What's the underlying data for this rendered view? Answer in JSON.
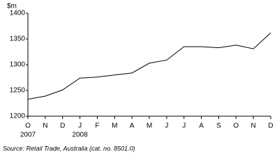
{
  "chart_data": {
    "type": "line",
    "y_label": "$m",
    "categories": [
      "O",
      "N",
      "D",
      "J",
      "F",
      "M",
      "A",
      "M",
      "J",
      "J",
      "A",
      "S",
      "O",
      "N",
      "D"
    ],
    "year_labels": [
      "2007",
      null,
      null,
      "2008",
      null,
      null,
      null,
      null,
      null,
      null,
      null,
      null,
      null,
      null,
      null
    ],
    "values": [
      1233,
      1239,
      1251,
      1274,
      1276,
      1280,
      1284,
      1303,
      1309,
      1335,
      1335,
      1333,
      1338,
      1331,
      1362
    ],
    "color": "#000000",
    "ylim": [
      1200,
      1400
    ],
    "yticks": [
      1200,
      1250,
      1300,
      1350,
      1400
    ],
    "grid": false,
    "source": "Source: Retail Trade, Australia (cat. no. 8501.0)"
  }
}
